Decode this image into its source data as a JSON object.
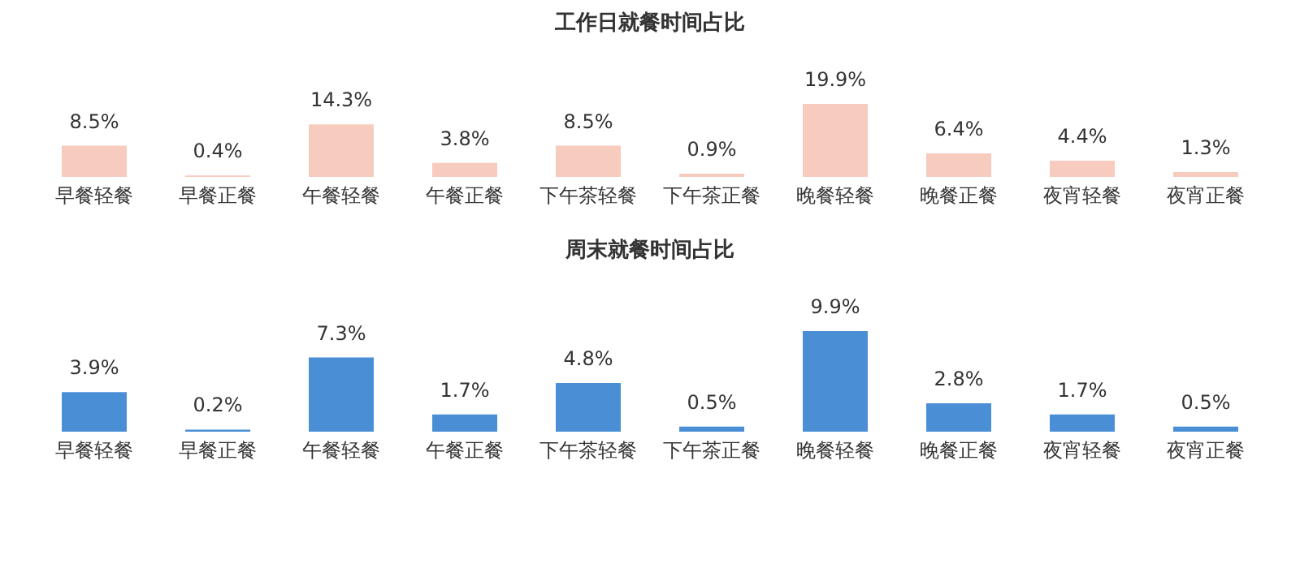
{
  "chart_data": [
    {
      "type": "bar",
      "title": "工作日就餐时间占比",
      "categories": [
        "早餐轻餐",
        "早餐正餐",
        "午餐轻餐",
        "午餐正餐",
        "下午茶轻餐",
        "下午茶正餐",
        "晚餐轻餐",
        "晚餐正餐",
        "夜宵轻餐",
        "夜宵正餐"
      ],
      "values": [
        8.5,
        0.4,
        14.3,
        3.8,
        8.5,
        0.9,
        19.9,
        6.4,
        4.4,
        1.3
      ],
      "value_labels": [
        "8.5%",
        "0.4%",
        "14.3%",
        "3.8%",
        "8.5%",
        "0.9%",
        "19.9%",
        "6.4%",
        "4.4%",
        "1.3%"
      ],
      "color": "#f8cbbf"
    },
    {
      "type": "bar",
      "title": "周末就餐时间占比",
      "categories": [
        "早餐轻餐",
        "早餐正餐",
        "午餐轻餐",
        "午餐正餐",
        "下午茶轻餐",
        "下午茶正餐",
        "晚餐轻餐",
        "晚餐正餐",
        "夜宵轻餐",
        "夜宵正餐"
      ],
      "values": [
        3.9,
        0.2,
        7.3,
        1.7,
        4.8,
        0.5,
        9.9,
        2.8,
        1.7,
        0.5
      ],
      "value_labels": [
        "3.9%",
        "0.2%",
        "7.3%",
        "1.7%",
        "4.8%",
        "0.5%",
        "9.9%",
        "2.8%",
        "1.7%",
        "0.5%"
      ],
      "color": "#4a8fd6"
    }
  ]
}
